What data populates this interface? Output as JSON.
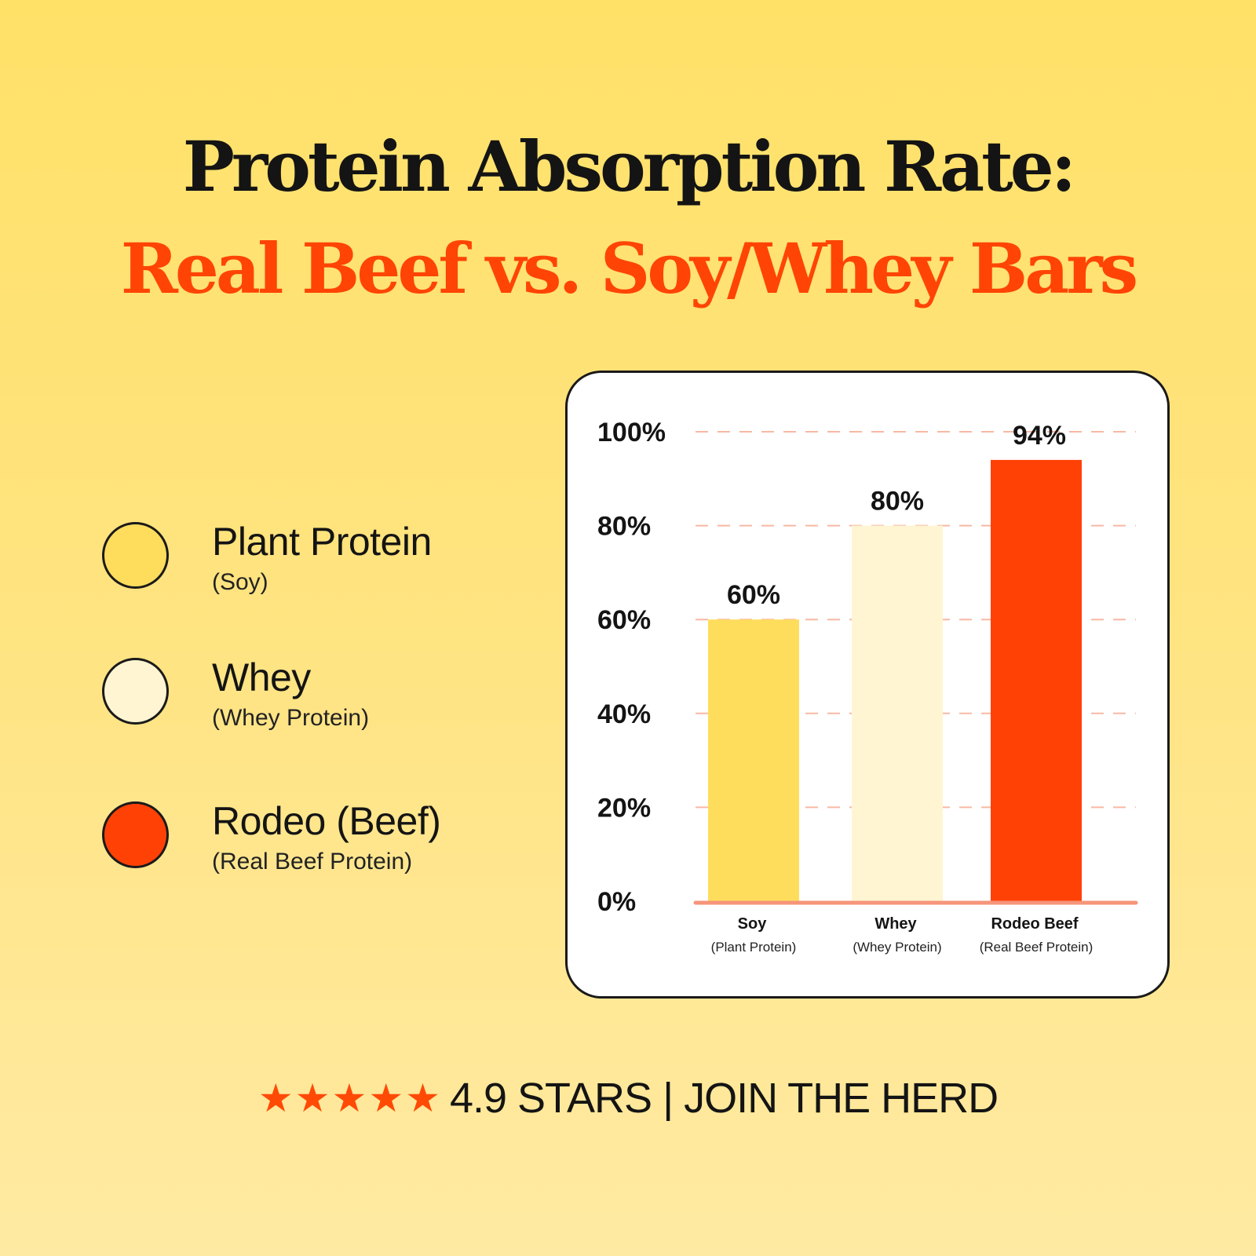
{
  "title": "Protein Absorption Rate:",
  "subtitle": "Real Beef vs. Soy/Whey Bars",
  "legend": [
    {
      "label": "Plant Protein",
      "sub": "(Soy)",
      "color": "#ffdd5c"
    },
    {
      "label": "Whey",
      "sub": "(Whey Protein)",
      "color": "#fff5d2"
    },
    {
      "label": "Rodeo (Beef)",
      "sub": "(Real Beef Protein)",
      "color": "#ff4106"
    }
  ],
  "chart_data": {
    "type": "bar",
    "categories": [
      "Soy",
      "Whey",
      "Rodeo Beef"
    ],
    "category_subs": [
      "(Plant Protein)",
      "(Whey Protein)",
      "(Real Beef Protein)"
    ],
    "values": [
      60,
      80,
      94
    ],
    "value_labels": [
      "60%",
      "80%",
      "94%"
    ],
    "colors": [
      "#ffdd5c",
      "#fff5d2",
      "#ff4106"
    ],
    "yticks": [
      0,
      20,
      40,
      60,
      80,
      100
    ],
    "ytick_labels": [
      "0%",
      "20%",
      "40%",
      "60%",
      "80%",
      "100%"
    ],
    "ylim": [
      0,
      100
    ],
    "grid": true,
    "grid_color": "#f8b9a4",
    "baseline_color": "#f6957a"
  },
  "footer": {
    "stars": "★★★★★",
    "text": "4.9 STARS | JOIN THE HERD"
  }
}
